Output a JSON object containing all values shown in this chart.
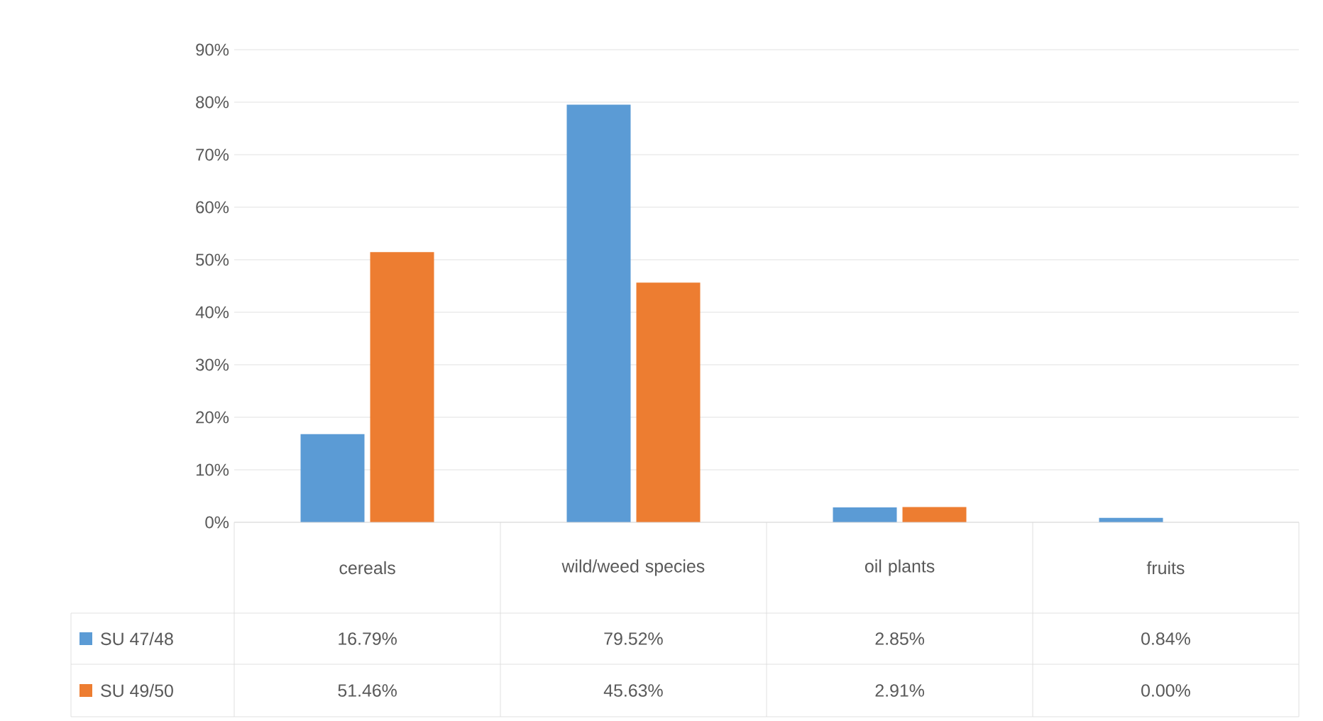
{
  "chart_data": {
    "type": "bar",
    "categories": [
      "cereals",
      "wild/weed species",
      "oil plants",
      "fruits"
    ],
    "series": [
      {
        "name": "SU 47/48",
        "color": "#5b9bd5",
        "values": [
          16.79,
          79.52,
          2.85,
          0.84
        ],
        "value_labels": [
          "16.79%",
          "79.52%",
          "2.85%",
          "0.84%"
        ]
      },
      {
        "name": "SU 49/50",
        "color": "#ed7d31",
        "values": [
          51.46,
          45.63,
          2.91,
          0.0
        ],
        "value_labels": [
          "51.46%",
          "45.63%",
          "2.91%",
          "0.00%"
        ]
      }
    ],
    "ylim": [
      0,
      90
    ],
    "yticks": [
      {
        "value": 0,
        "label": "0%"
      },
      {
        "value": 10,
        "label": "10%"
      },
      {
        "value": 20,
        "label": "20%"
      },
      {
        "value": 30,
        "label": "30%"
      },
      {
        "value": 40,
        "label": "40%"
      },
      {
        "value": 50,
        "label": "50%"
      },
      {
        "value": 60,
        "label": "60%"
      },
      {
        "value": 70,
        "label": "70%"
      },
      {
        "value": 80,
        "label": "80%"
      },
      {
        "value": 90,
        "label": "90%"
      }
    ],
    "grid": "y",
    "legend": "bottom"
  }
}
